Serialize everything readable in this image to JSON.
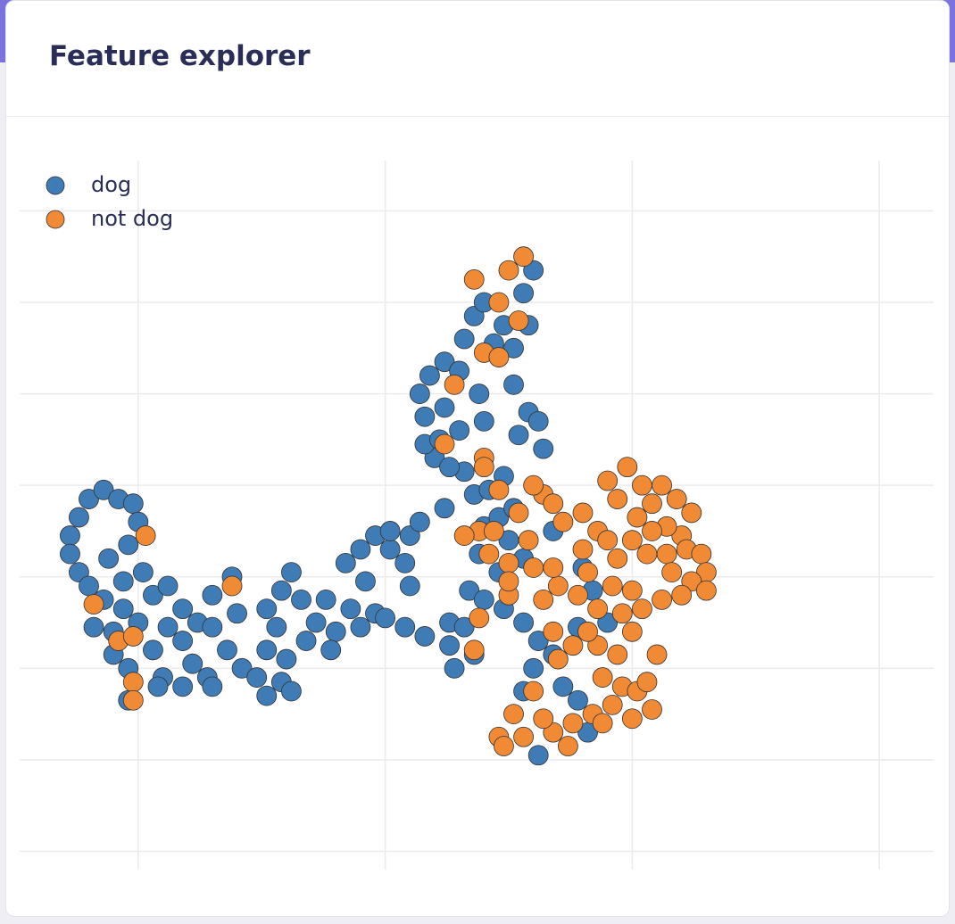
{
  "header": {
    "title": "Feature explorer"
  },
  "chart_data": {
    "type": "scatter",
    "grid": true,
    "xlim": [
      -2.4,
      16.1
    ],
    "ylim": [
      -0.4,
      15.1
    ],
    "xticks": [
      0,
      5,
      10,
      15
    ],
    "yticks": [
      0,
      2,
      4,
      6,
      8,
      10,
      12,
      14
    ],
    "series": [
      {
        "name": "dog",
        "color": "#3f7bb5",
        "x": [
          -1.38,
          -1.38,
          -1.2,
          -1.0,
          -0.7,
          -0.4,
          -0.1,
          0.0,
          -1.2,
          -1.0,
          -0.7,
          -0.3,
          0.0,
          -0.5,
          -0.9,
          -0.6,
          -0.2,
          -0.3,
          0.1,
          -0.5,
          -0.2,
          -0.2,
          0.3,
          0.6,
          0.9,
          0.6,
          0.3,
          0.9,
          1.2,
          1.5,
          1.5,
          1.1,
          0.5,
          1.4,
          0.4,
          0.9,
          1.5,
          1.8,
          2.0,
          1.9,
          2.1,
          2.4,
          2.6,
          2.6,
          2.9,
          3.1,
          3.3,
          2.8,
          3.0,
          2.9,
          2.6,
          3.1,
          3.4,
          3.6,
          3.8,
          4.0,
          3.9,
          4.3,
          4.5,
          4.8,
          4.2,
          4.5,
          4.8,
          5.1,
          5.4,
          5.5,
          5.7,
          5.1,
          4.6,
          5.0,
          5.4,
          5.8,
          5.5,
          6.3,
          6.3,
          6.6,
          6.8,
          6.7,
          6.9,
          7.0,
          6.8,
          7.1,
          7.3,
          7.6,
          7.5,
          7.8,
          7.3,
          7.0,
          7.4,
          7.8,
          8.1,
          8.0,
          7.8,
          8.4,
          8.6,
          8.9,
          9.1,
          8.1,
          8.9,
          9.2,
          9.5,
          9.0,
          8.4,
          7.4,
          6.2,
          6.6,
          6.4,
          6.0,
          5.8,
          5.8,
          5.7,
          5.9,
          6.2,
          6.5,
          6.6,
          6.8,
          7.0,
          7.4,
          7.6,
          7.8,
          8.0,
          7.9,
          7.2,
          6.2,
          6.5,
          6.9,
          7.6,
          7.9,
          8.1,
          7.7,
          8.2,
          7.0,
          6.1,
          6.3
        ],
        "y": [
          6.9,
          6.5,
          7.3,
          7.7,
          7.9,
          7.7,
          7.6,
          7.2,
          6.1,
          5.8,
          5.5,
          5.3,
          5.0,
          4.8,
          4.9,
          6.4,
          6.7,
          5.9,
          6.1,
          4.3,
          4.0,
          3.3,
          5.6,
          5.8,
          5.3,
          4.9,
          4.4,
          4.6,
          5.0,
          5.6,
          4.9,
          4.1,
          3.8,
          3.8,
          3.6,
          3.6,
          3.6,
          4.4,
          5.2,
          6.0,
          4.0,
          3.8,
          4.4,
          5.3,
          5.7,
          6.1,
          5.5,
          4.9,
          4.2,
          3.7,
          3.4,
          3.5,
          4.6,
          5.0,
          5.5,
          4.8,
          4.4,
          5.3,
          4.9,
          5.2,
          6.3,
          6.6,
          6.9,
          6.6,
          6.3,
          6.9,
          7.2,
          7.0,
          5.9,
          5.1,
          4.9,
          4.7,
          5.8,
          5.0,
          4.5,
          4.9,
          4.3,
          5.7,
          6.5,
          7.1,
          7.8,
          7.9,
          7.3,
          7.5,
          6.8,
          6.4,
          6.1,
          5.5,
          5.3,
          5.0,
          4.6,
          4.0,
          3.5,
          4.3,
          3.6,
          3.3,
          2.6,
          2.1,
          4.9,
          5.7,
          5.0,
          6.2,
          7.0,
          8.2,
          7.5,
          8.3,
          4.0,
          8.6,
          8.9,
          9.5,
          10.0,
          10.4,
          10.7,
          10.5,
          11.2,
          11.7,
          12.0,
          11.5,
          11.0,
          12.2,
          12.7,
          11.5,
          11.1,
          9.7,
          9.2,
          10.0,
          10.2,
          9.6,
          9.4,
          9.1,
          8.8,
          9.4,
          9.0,
          8.4
        ]
      },
      {
        "name": "not dog",
        "color": "#f08a35",
        "x": [
          0.15,
          1.9,
          -0.9,
          -0.4,
          -0.1,
          -0.1,
          -0.1,
          6.8,
          7.5,
          7.8,
          7.3,
          7.7,
          7.0,
          7.3,
          6.4,
          6.2,
          7.0,
          7.3,
          7.7,
          8.2,
          8.4,
          6.9,
          6.6,
          7.2,
          7.5,
          7.9,
          8.6,
          9.0,
          9.3,
          9.0,
          9.5,
          9.1,
          8.9,
          8.5,
          8.2,
          8.4,
          7.1,
          6.9,
          7.5,
          8.0,
          9.3,
          9.8,
          10.0,
          9.7,
          10.0,
          10.1,
          9.7,
          9.5,
          9.9,
          10.2,
          10.4,
          10.6,
          10.9,
          11.2,
          11.0,
          10.7,
          10.4,
          10.3,
          10.7,
          11.1,
          11.4,
          11.5,
          11.2,
          10.8,
          10.6,
          11.0,
          11.5,
          10.5,
          10.0,
          9.7,
          9.3,
          9.1,
          8.8,
          8.5,
          8.0,
          9.4,
          9.8,
          10.1,
          10.3,
          9.6,
          9.2,
          8.8,
          8.4,
          8.2,
          7.6,
          7.3,
          7.4,
          7.8,
          8.7,
          9.4,
          10.0,
          10.4,
          6.8,
          7.5,
          8.4,
          9.6,
          10.2,
          7.0,
          8.0
        ],
        "y": [
          6.9,
          5.8,
          5.4,
          4.6,
          4.7,
          3.7,
          3.3,
          12.5,
          12.7,
          13.0,
          12.0,
          11.6,
          10.9,
          10.8,
          10.2,
          8.9,
          8.6,
          7.9,
          7.4,
          7.8,
          7.6,
          7.0,
          6.9,
          7.0,
          6.3,
          6.8,
          7.2,
          7.4,
          7.0,
          6.6,
          6.8,
          6.1,
          5.6,
          5.8,
          5.5,
          6.2,
          6.5,
          5.1,
          5.6,
          6.2,
          5.3,
          5.2,
          5.7,
          6.4,
          6.8,
          7.3,
          7.7,
          8.1,
          8.4,
          8.0,
          7.6,
          8.0,
          7.7,
          7.4,
          6.9,
          7.1,
          7.0,
          6.5,
          6.5,
          6.6,
          6.5,
          6.1,
          5.9,
          6.1,
          5.5,
          5.6,
          5.7,
          4.3,
          4.8,
          4.3,
          4.5,
          4.8,
          4.5,
          4.2,
          3.5,
          3.8,
          3.6,
          3.5,
          3.7,
          3.2,
          3.0,
          2.8,
          2.6,
          2.9,
          3.0,
          2.5,
          2.3,
          2.5,
          2.3,
          2.8,
          2.9,
          3.1,
          4.4,
          5.9,
          4.8,
          5.8,
          5.3,
          8.4,
          8.0
        ]
      }
    ]
  }
}
